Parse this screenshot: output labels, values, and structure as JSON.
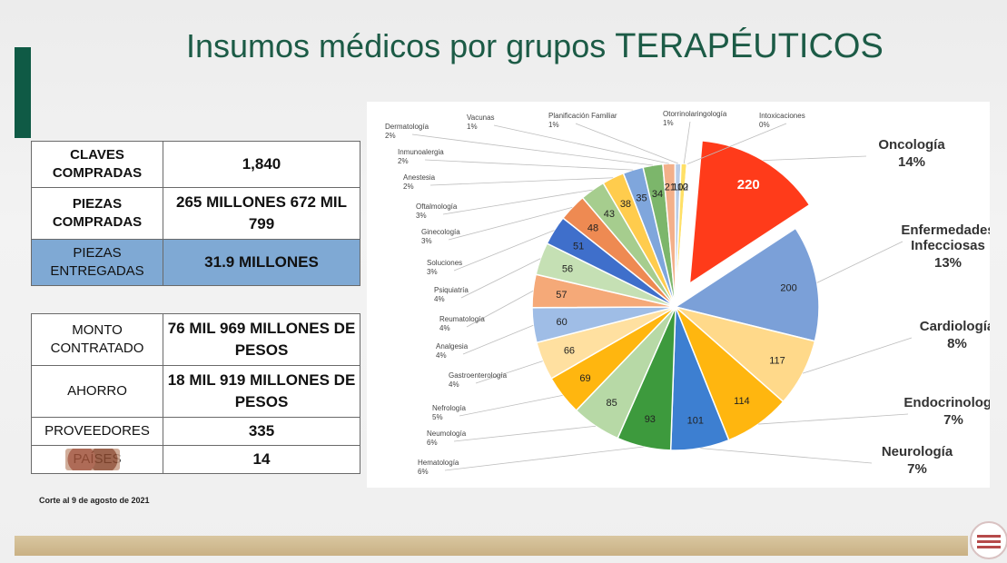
{
  "page": {
    "title_main": "Insumos médicos por grupos",
    "title_caps": "TERAPÉUTICOS",
    "footnote": "Corte al 9 de agosto de 2021"
  },
  "stats_top": [
    {
      "label": "CLAVES COMPRADAS",
      "value": "1,840"
    },
    {
      "label": "PIEZAS COMPRADAS",
      "value": "265 MILLONES 672 MIL 799"
    },
    {
      "label": "PIEZAS ENTREGADAS",
      "value": "31.9 MILLONES"
    }
  ],
  "stats_bottom": [
    {
      "label": "MONTO CONTRATADO",
      "value": "76 MIL 969 MILLONES DE PESOS"
    },
    {
      "label": "AHORRO",
      "value": "18 MIL 919 MILLONES DE PESOS"
    },
    {
      "label": "PROVEEDORES",
      "value": "335"
    },
    {
      "label": "PAÍSES",
      "value": "14"
    }
  ],
  "chart_data": {
    "type": "pie",
    "title": "",
    "slices": [
      {
        "name": "Oncología",
        "value": 220,
        "pct": "14%",
        "color": "#ff3b1a",
        "explode": true
      },
      {
        "name": "Enfermedades Infecciosas",
        "value": 200,
        "pct": "13%",
        "color": "#7ba0d8"
      },
      {
        "name": "Cardiología",
        "value": 117,
        "pct": "8%",
        "color": "#ffd98a"
      },
      {
        "name": "Endocrinología",
        "value": 114,
        "pct": "7%",
        "color": "#ffb60f"
      },
      {
        "name": "Neurología",
        "value": 101,
        "pct": "7%",
        "color": "#3d7fd1"
      },
      {
        "name": "Hematología",
        "value": 93,
        "pct": "6%",
        "color": "#3d9a3d"
      },
      {
        "name": "Neumología",
        "value": 85,
        "pct": "6%",
        "color": "#b7d9a6"
      },
      {
        "name": "Nefrología",
        "value": 69,
        "pct": "5%",
        "color": "#ffb60f"
      },
      {
        "name": "Gastroenterología",
        "value": 66,
        "pct": "4%",
        "color": "#ffe0a0"
      },
      {
        "name": "Analgesia",
        "value": 60,
        "pct": "4%",
        "color": "#9fbde6"
      },
      {
        "name": "Reumatología",
        "value": 57,
        "pct": "4%",
        "color": "#f5a978"
      },
      {
        "name": "Psiquiatría",
        "value": 56,
        "pct": "4%",
        "color": "#c5e0b4"
      },
      {
        "name": "Soluciones",
        "value": 51,
        "pct": "3%",
        "color": "#3f6fcb"
      },
      {
        "name": "Ginecología",
        "value": 48,
        "pct": "3%",
        "color": "#ee8a52"
      },
      {
        "name": "Oftalmología",
        "value": 43,
        "pct": "3%",
        "color": "#a6cd8e"
      },
      {
        "name": "Anestesia",
        "value": 38,
        "pct": "2%",
        "color": "#ffcc4d"
      },
      {
        "name": "Inmunoalergia",
        "value": 35,
        "pct": "2%",
        "color": "#7fa6dc"
      },
      {
        "name": "Dermatología",
        "value": 34,
        "pct": "2%",
        "color": "#7cb66b"
      },
      {
        "name": "Vacunas",
        "value": 21,
        "pct": "1%",
        "color": "#f3b08a"
      },
      {
        "name": "Planificación Familiar",
        "value": 10,
        "pct": "1%",
        "color": "#b8cce8"
      },
      {
        "name": "Otorrinolaringología",
        "value": 10,
        "pct": "1%",
        "color": "#ffe066"
      },
      {
        "name": "Intoxicaciones",
        "value": 2,
        "pct": "0%",
        "color": "#fff3c4"
      }
    ]
  }
}
